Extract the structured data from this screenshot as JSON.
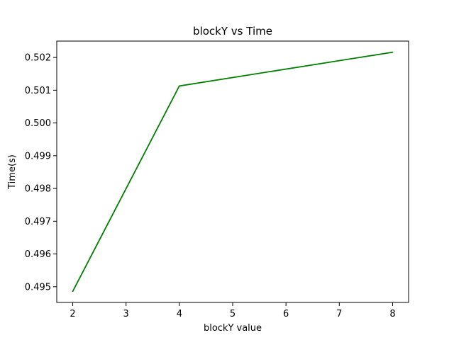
{
  "chart_data": {
    "type": "line",
    "title": "blockY vs Time",
    "xlabel": "blockY value",
    "ylabel": "Time(s)",
    "x": [
      2,
      4,
      8
    ],
    "series": [
      {
        "values": [
          0.49486,
          0.50113,
          0.50216
        ],
        "color": "#008000"
      }
    ],
    "xlim": [
      1.7,
      8.3
    ],
    "ylim": [
      0.49452,
      0.5025
    ],
    "xticks": [
      2,
      3,
      4,
      5,
      6,
      7,
      8
    ],
    "xtick_labels": [
      "2",
      "3",
      "4",
      "5",
      "6",
      "7",
      "8"
    ],
    "yticks": [
      0.495,
      0.496,
      0.497,
      0.498,
      0.499,
      0.5,
      0.501,
      0.502
    ],
    "ytick_labels": [
      "0.495",
      "0.496",
      "0.497",
      "0.498",
      "0.499",
      "0.500",
      "0.501",
      "0.502"
    ],
    "grid": false,
    "legend": "none"
  }
}
